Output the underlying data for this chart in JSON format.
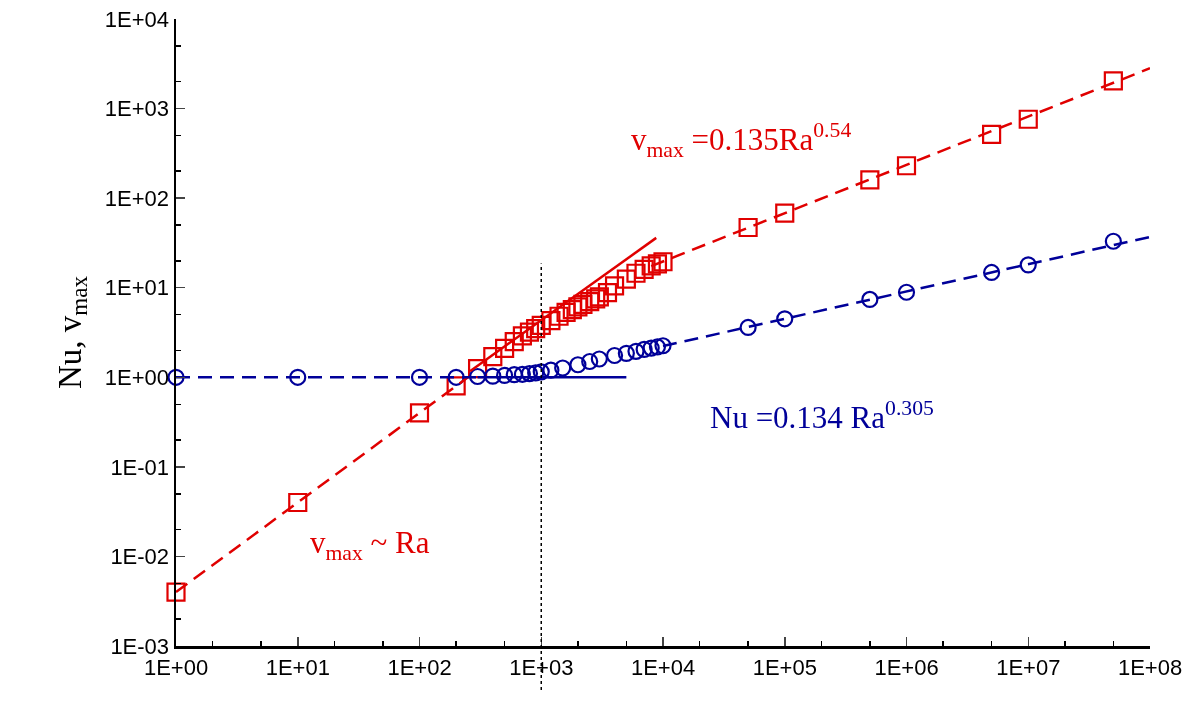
{
  "chart_data": {
    "type": "scatter",
    "ylabel": "Nu, v$_{max}$",
    "log": "xy",
    "grid": false,
    "xlim": [
      1,
      100000000
    ],
    "ylim": [
      0.001,
      10000
    ],
    "xticks": [
      {
        "value": 1,
        "label": "1E+00"
      },
      {
        "value": 10,
        "label": "1E+01"
      },
      {
        "value": 100,
        "label": "1E+02"
      },
      {
        "value": 1000,
        "label": "1E+03"
      },
      {
        "value": 10000,
        "label": "1E+04"
      },
      {
        "value": 100000,
        "label": "1E+05"
      },
      {
        "value": 1000000,
        "label": "1E+06"
      },
      {
        "value": 10000000,
        "label": "1E+07"
      },
      {
        "value": 100000000,
        "label": "1E+08"
      }
    ],
    "yticks": [
      {
        "value": 0.001,
        "label": "1E-03"
      },
      {
        "value": 0.01,
        "label": "1E-02"
      },
      {
        "value": 0.1,
        "label": "1E-01"
      },
      {
        "value": 1,
        "label": "1E+00"
      },
      {
        "value": 10,
        "label": "1E+01"
      },
      {
        "value": 100,
        "label": "1E+02"
      },
      {
        "value": 1000,
        "label": "1E+03"
      },
      {
        "value": 10000,
        "label": "1E+04"
      }
    ],
    "series": [
      {
        "marker": "square",
        "color": "#e00000",
        "x": [
          1,
          10,
          100,
          200,
          300,
          400,
          500,
          600,
          700,
          800,
          900,
          1000,
          1200,
          1400,
          1600,
          1800,
          2000,
          2200,
          2500,
          2800,
          3000,
          3500,
          4000,
          5000,
          6000,
          7000,
          8000,
          9000,
          10000,
          50000,
          100000,
          500000,
          1000000,
          5000000,
          10000000,
          50000000
        ],
        "values": [
          0.004,
          0.04,
          0.4,
          0.8,
          1.25,
          1.7,
          2.1,
          2.5,
          2.9,
          3.2,
          3.5,
          3.8,
          4.3,
          4.8,
          5.3,
          5.7,
          6.1,
          6.5,
          7,
          7.5,
          7.9,
          8.8,
          10.5,
          12.5,
          14.5,
          16,
          17.5,
          18.5,
          19.5,
          47,
          68,
          160,
          230,
          515,
          760,
          2040
        ]
      },
      {
        "marker": "circle",
        "color": "#000099",
        "x": [
          1,
          10,
          100,
          200,
          300,
          400,
          500,
          600,
          700,
          800,
          900,
          1000,
          1200,
          1500,
          2000,
          2500,
          3000,
          4000,
          5000,
          6000,
          7000,
          8000,
          9000,
          10000,
          50000,
          100000,
          500000,
          1000000,
          5000000,
          10000000,
          50000000
        ],
        "values": [
          1,
          1,
          1,
          1,
          1.02,
          1.03,
          1.05,
          1.07,
          1.08,
          1.1,
          1.12,
          1.15,
          1.2,
          1.27,
          1.38,
          1.5,
          1.6,
          1.75,
          1.85,
          1.95,
          2.05,
          2.12,
          2.18,
          2.25,
          3.6,
          4.5,
          7.4,
          8.9,
          14.8,
          18,
          33
        ]
      },
      {
        "type": "line",
        "marker": "none",
        "line_style": "dashed",
        "color": "#e00000",
        "x": [
          1,
          250
        ],
        "values": [
          0.004,
          1
        ]
      },
      {
        "type": "line",
        "marker": "none",
        "line_style": "solid",
        "color": "#e00000",
        "x": [
          260,
          8800
        ],
        "values": [
          1.17,
          36
        ]
      },
      {
        "type": "line",
        "marker": "none",
        "line_style": "dashed",
        "color": "#e00000",
        "x": [
          8000,
          100000000
        ],
        "values": [
          17.4,
          2820
        ]
      },
      {
        "type": "line",
        "marker": "none",
        "line_style": "dashed",
        "color": "#000099",
        "x": [
          1,
          300
        ],
        "values": [
          1,
          1
        ]
      },
      {
        "type": "line",
        "marker": "none",
        "line_style": "solid",
        "color": "#000099",
        "x": [
          300,
          5000
        ],
        "values": [
          1,
          1
        ]
      },
      {
        "type": "line",
        "marker": "none",
        "line_style": "dashed",
        "color": "#000099",
        "x": [
          10000,
          100000000
        ],
        "values": [
          2.23,
          36.9
        ]
      }
    ],
    "ref_lines": [
      {
        "axis": "x",
        "value": 1000,
        "color": "#000000",
        "line_style": "dotted"
      }
    ],
    "annotations": [
      "v$_{max}$ =0.135Ra$^{0.54}$",
      "v$_{max}$ ~ Ra",
      "Nu =0.134 Ra$^{0.305}$"
    ]
  }
}
